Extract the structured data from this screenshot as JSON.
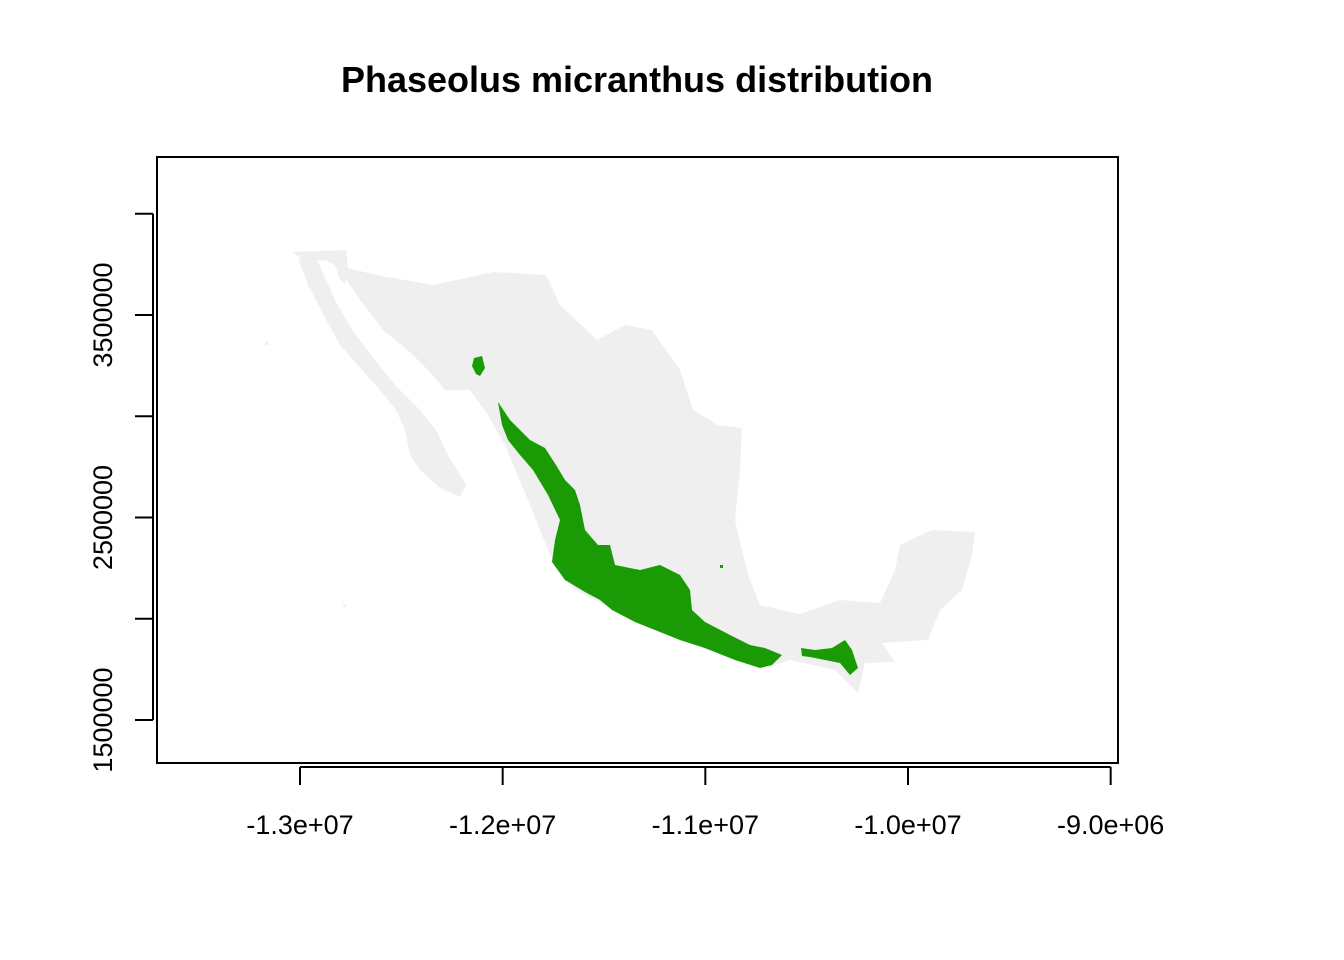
{
  "title": "Phaseolus micranthus distribution",
  "colors": {
    "land": "#efefef",
    "distribution": "#1a9a05",
    "axis": "#000000",
    "background": "#ffffff"
  },
  "map": {
    "region": "Mexico",
    "species": "Phaseolus micranthus",
    "x_ticks": [
      {
        "value": -13000000,
        "label": "-1.3e+07"
      },
      {
        "value": -12000000,
        "label": "-1.2e+07"
      },
      {
        "value": -11000000,
        "label": "-1.1e+07"
      },
      {
        "value": -10000000,
        "label": "-1.0e+07"
      },
      {
        "value": -9000000,
        "label": "-9.0e+06"
      }
    ],
    "y_ticks": [
      {
        "value": 1500000,
        "label": "1500000"
      },
      {
        "value": 2000000,
        "label": ""
      },
      {
        "value": 2500000,
        "label": "2500000"
      },
      {
        "value": 3000000,
        "label": ""
      },
      {
        "value": 3500000,
        "label": "3500000"
      },
      {
        "value": 4000000,
        "label": ""
      }
    ],
    "x_range": [
      -13700000,
      -8950000
    ],
    "y_range": [
      1300000,
      4300000
    ]
  }
}
